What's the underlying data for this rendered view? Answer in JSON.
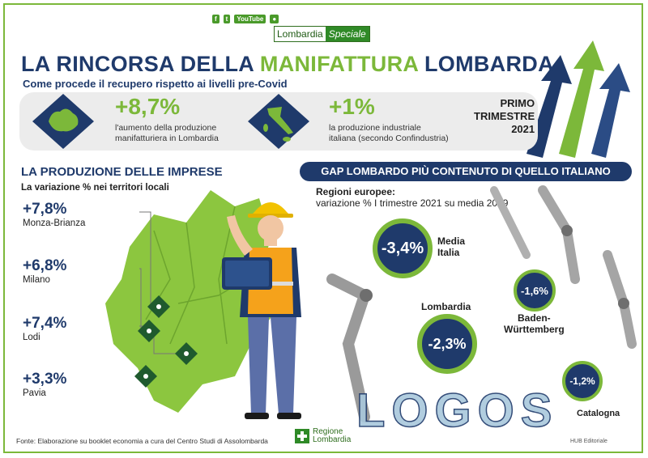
{
  "header": {
    "social": [
      "f",
      "t",
      "YouTube",
      "●"
    ],
    "brand_left": "Lombardia",
    "brand_right": "Speciale"
  },
  "title": {
    "part1": "LA RINCORSA DELLA",
    "part2": "MANIFATTURA",
    "part3": "LOMBARDA"
  },
  "subtitle": "Come procede il recupero rispetto ai livelli pre-Covid",
  "summary": {
    "lombardia_value": "+8,7%",
    "lombardia_line1": "l'aumento della produzione",
    "lombardia_line2": "manifatturiera in Lombardia",
    "italia_value": "+1%",
    "italia_line1": "la produzione industriale",
    "italia_line2": "italiana (secondo Confindustria)",
    "period1": "PRIMO",
    "period2": "TRIMESTRE",
    "period3": "2021"
  },
  "imprese": {
    "heading": "LA PRODUZIONE DELLE IMPRESE",
    "subheading": "La variazione % nei territori locali",
    "items": [
      {
        "value": "+7,8%",
        "name": "Monza-Brianza"
      },
      {
        "value": "+6,8%",
        "name": "Milano"
      },
      {
        "value": "+7,4%",
        "name": "Lodi"
      },
      {
        "value": "+3,3%",
        "name": "Pavia"
      }
    ]
  },
  "gap": {
    "banner": "GAP LOMBARDO PIÙ CONTENUTO DI QUELLO ITALIANO",
    "heading": "Regioni europee:",
    "subheading": "variazione % I trimestre 2021 su media 2019",
    "media_value": "-3,4%",
    "media_label1": "Media",
    "media_label2": "Italia",
    "lomb_value": "-2,3%",
    "lomb_label": "Lombardia",
    "bw_value": "-1,6%",
    "bw_label1": "Baden-",
    "bw_label2": "Württemberg",
    "cat_value": "-1,2%",
    "cat_label": "Catalogna"
  },
  "footer": {
    "source": "Fonte: Elaborazione su booklet economia a cura del Centro Studi di Assolombarda",
    "regione1": "Regione",
    "regione2": "Lombardia",
    "hub": "HUB Editoriale",
    "watermark": "LOGOS"
  },
  "colors": {
    "navy": "#1f3a6b",
    "green": "#7cb83a",
    "light_gray": "#ececec"
  }
}
